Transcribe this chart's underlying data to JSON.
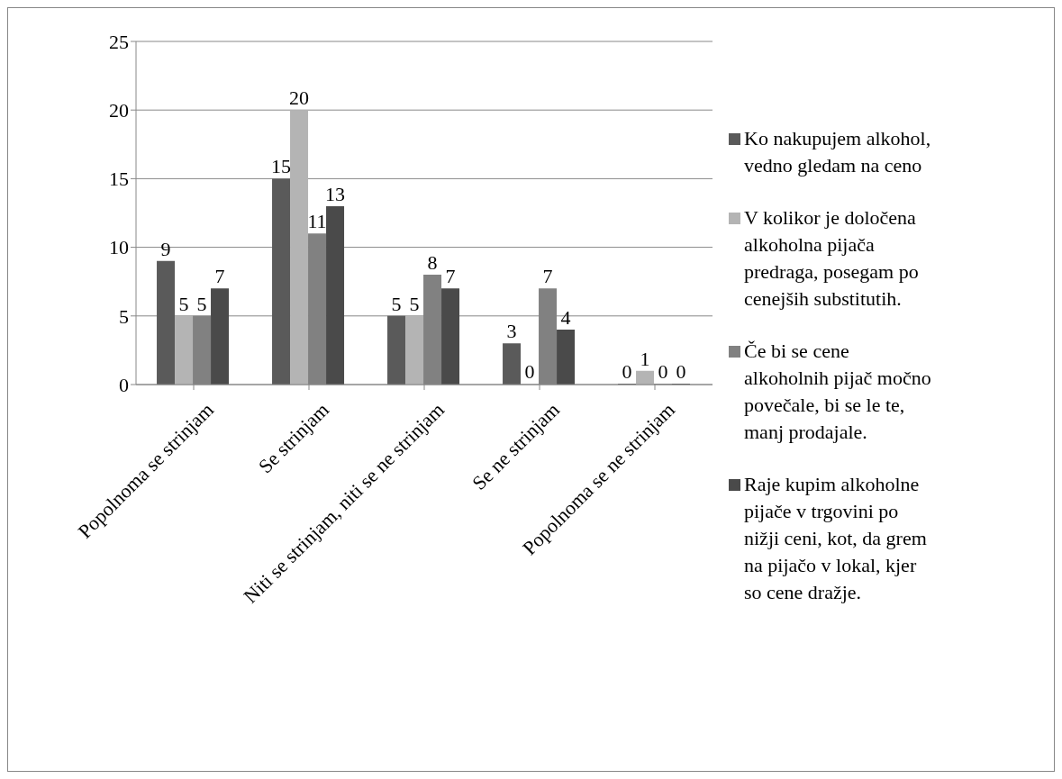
{
  "chart_data": {
    "type": "bar",
    "categories": [
      "Popolnoma se strinjam",
      "Se strinjam",
      "Niti se strinjam, niti se ne strinjam",
      "Se ne strinjam",
      "Popolnoma se ne strinjam"
    ],
    "series": [
      {
        "name": "Ko nakupujem alkohol, vedno gledam na ceno",
        "color": "#5a5a5a",
        "values": [
          9,
          15,
          5,
          3,
          0
        ]
      },
      {
        "name": "V kolikor je določena alkoholna pijača predraga, posegam po cenejših substitutih.",
        "color": "#b4b4b4",
        "values": [
          5,
          20,
          5,
          0,
          1
        ]
      },
      {
        "name": "Če bi se cene alkoholnih pijač močno povečale, bi se le te, manj prodajale.",
        "color": "#818181",
        "values": [
          5,
          11,
          8,
          7,
          0
        ]
      },
      {
        "name": "Raje kupim alkoholne pijače v trgovini po nižji ceni, kot, da grem na pijačo v lokal, kjer so cene dražje.",
        "color": "#4a4a4a",
        "values": [
          7,
          13,
          7,
          4,
          0
        ]
      }
    ],
    "ylim": [
      0,
      25
    ],
    "yticks": [
      0,
      5,
      10,
      15,
      20,
      25
    ],
    "grid": "y",
    "legend": "right",
    "data_labels": true
  }
}
